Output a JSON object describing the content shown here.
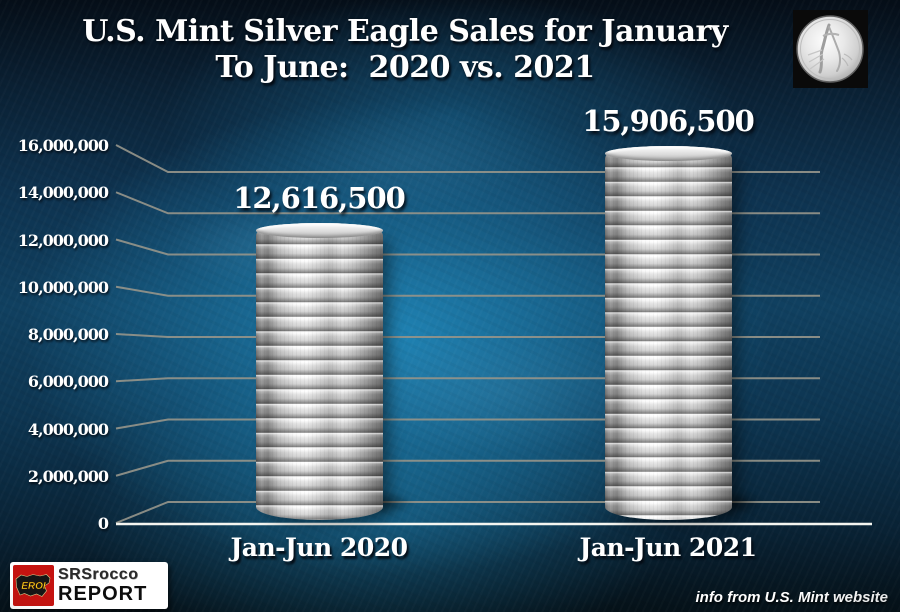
{
  "title": {
    "line1": "U.S. Mint Silver Eagle Sales for January",
    "line2": "To June:  2020 vs. 2021"
  },
  "source_note": "info from U.S. Mint website",
  "logo": {
    "name_top": "SRSrocco",
    "name_bottom": "REPORT",
    "badge": "EROI"
  },
  "colors": {
    "background_center": "#1b7aab",
    "background_edge": "#05101b",
    "gridline": "#94948a",
    "baseline": "#f5f5f0",
    "text": "#ffffff",
    "coin_silver": "#e8e8e8",
    "logo_red": "#c41310",
    "badge_yellow": "#ffd91c"
  },
  "chart_data": {
    "type": "bar",
    "title": "U.S. Mint Silver Eagle Sales for January To June: 2020 vs. 2021",
    "categories": [
      "Jan-Jun 2020",
      "Jan-Jun 2021"
    ],
    "values": [
      12616500,
      15906500
    ],
    "value_labels": [
      "12,616,500",
      "15,906,500"
    ],
    "xlabel": "",
    "ylabel": "",
    "ylim": [
      0,
      16000000
    ],
    "y_ticks": [
      {
        "value": 0,
        "label": "0"
      },
      {
        "value": 2000000,
        "label": "2,000,000"
      },
      {
        "value": 4000000,
        "label": "4,000,000"
      },
      {
        "value": 6000000,
        "label": "6,000,000"
      },
      {
        "value": 8000000,
        "label": "8,000,000"
      },
      {
        "value": 10000000,
        "label": "10,000,000"
      },
      {
        "value": 12000000,
        "label": "12,000,000"
      },
      {
        "value": 14000000,
        "label": "14,000,000"
      },
      {
        "value": 16000000,
        "label": "16,000,000"
      }
    ],
    "grid": true,
    "legend": false,
    "bar_appearance": "3D stacks of silver coins on perspective floor"
  }
}
